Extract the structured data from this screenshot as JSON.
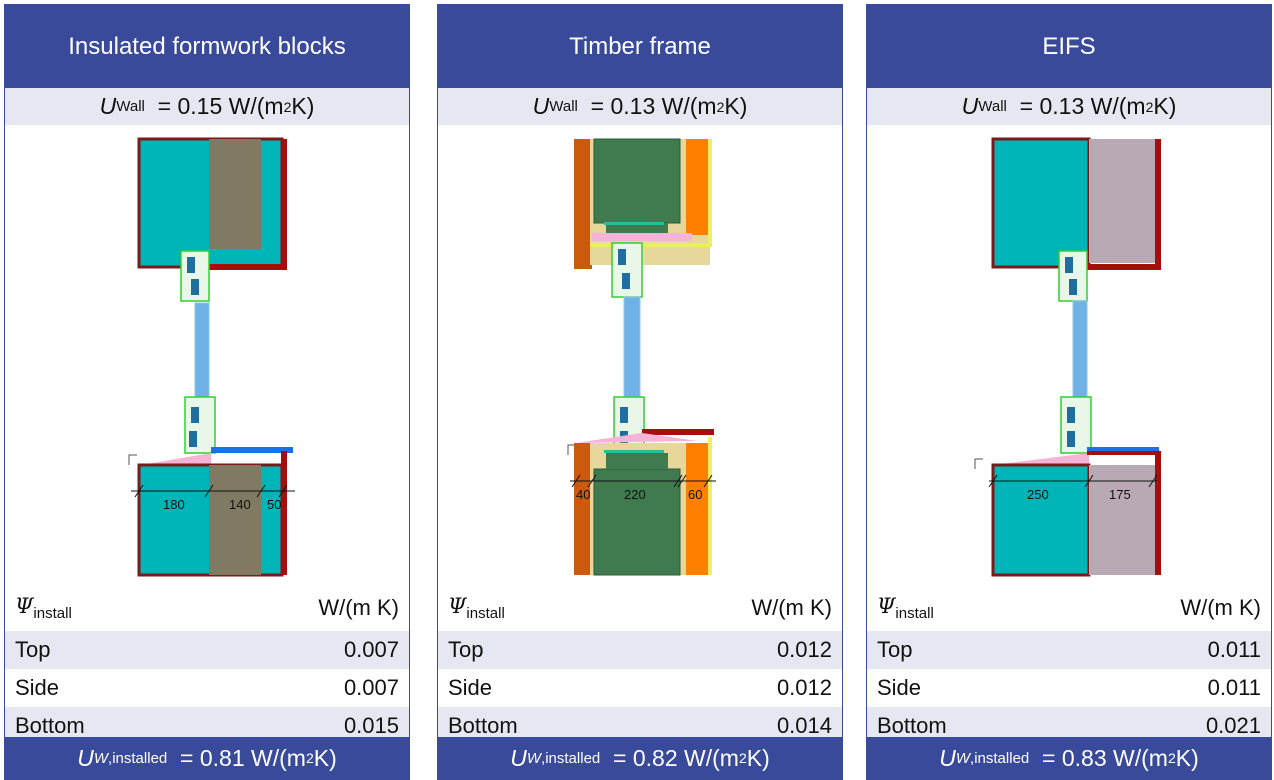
{
  "colors": {
    "header_bg": "#3a4a9a",
    "shade": "#e6e8f1",
    "concrete_cyan": "#00b5b8",
    "core_brown": "#807a62",
    "frame_red": "#a60d0d",
    "timber_green": "#3f7b4f",
    "insulation_orange": "#ff8000",
    "cladding_brown": "#cc5a0d",
    "mauve_insulation": "#b8a9b4",
    "glass_blue": "#6eb2e6",
    "sill_blue": "#1a72e6",
    "frame_green": "#30d030",
    "pink_tape": "#f4b3d7",
    "beige": "#e8d79b"
  },
  "symbols": {
    "u": "U",
    "wall_sub": "Wall",
    "uw": "U",
    "w_sub": "W",
    "installed_sub": ",installed",
    "psi": "Ψ",
    "install_sub": "install",
    "sq": "2"
  },
  "panels": [
    {
      "title": "Insulated formwork blocks",
      "u_wall_value": "= 0.15 W/(m",
      "u_wall_tail": " K)",
      "dims": [
        "180",
        "140",
        "50"
      ],
      "psi_unit": "W/(m K)",
      "rows": [
        {
          "label": "Top",
          "value": "0.007"
        },
        {
          "label": "Side",
          "value": "0.007"
        },
        {
          "label": "Bottom",
          "value": "0.015"
        }
      ],
      "uw_value": "= 0.81 W/(m",
      "uw_tail": " K)"
    },
    {
      "title": "Timber frame",
      "u_wall_value": "= 0.13 W/(m",
      "u_wall_tail": " K)",
      "dims": [
        "40",
        "220",
        "60"
      ],
      "psi_unit": "W/(m K)",
      "rows": [
        {
          "label": "Top",
          "value": "0.012"
        },
        {
          "label": "Side",
          "value": "0.012"
        },
        {
          "label": "Bottom",
          "value": "0.014"
        }
      ],
      "uw_value": "= 0.82 W/(m",
      "uw_tail": " K)"
    },
    {
      "title": "EIFS",
      "u_wall_value": "= 0.13 W/(m",
      "u_wall_tail": " K)",
      "dims": [
        "250",
        "175"
      ],
      "psi_unit": "W/(m K)",
      "rows": [
        {
          "label": "Top",
          "value": "0.011"
        },
        {
          "label": "Side",
          "value": "0.011"
        },
        {
          "label": "Bottom",
          "value": "0.021"
        }
      ],
      "uw_value": "= 0.83 W/(m",
      "uw_tail": " K)"
    }
  ]
}
